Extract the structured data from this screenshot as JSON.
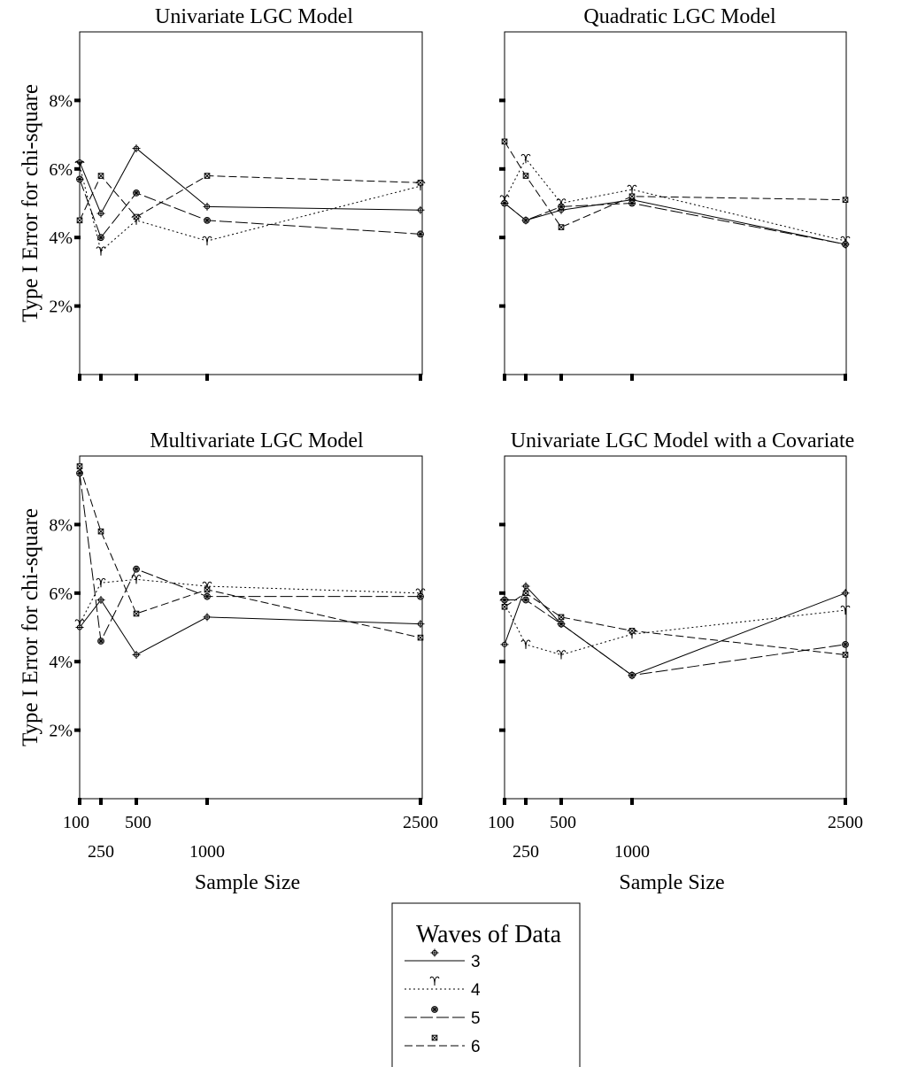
{
  "y_axis_label": "Type I Error for chi-square",
  "x_axis_label": "Sample Size",
  "y_tick_labels": [
    "2%",
    "4%",
    "6%",
    "8%"
  ],
  "x_tick_labels": [
    {
      "label": "100",
      "row": 1
    },
    {
      "label": "250",
      "row": 2
    },
    {
      "label": "500",
      "row": 1
    },
    {
      "label": "1000",
      "row": 2
    },
    {
      "label": "2500",
      "row": 1
    }
  ],
  "legend": {
    "title": "Waves of Data",
    "entries": [
      {
        "label": "3",
        "marker": "circle-plus",
        "dash": "solid"
      },
      {
        "label": "4",
        "marker": "aries",
        "dash": "dotted"
      },
      {
        "label": "5",
        "marker": "snowflake-circle",
        "dash": "long-dash"
      },
      {
        "label": "6",
        "marker": "box-x",
        "dash": "medium-dash"
      }
    ]
  },
  "chart_data": [
    {
      "type": "line",
      "title": "Univariate LGC Model",
      "x": [
        100,
        250,
        500,
        1000,
        2500
      ],
      "ylim": [
        0,
        10
      ],
      "yticks": [
        2,
        4,
        6,
        8
      ],
      "ylabel": "Type I Error for chi-square",
      "xlabel": "",
      "series": [
        {
          "name": "3",
          "values": [
            6.2,
            4.7,
            6.6,
            4.9,
            4.8
          ]
        },
        {
          "name": "4",
          "values": [
            6.1,
            3.6,
            4.5,
            3.9,
            5.5
          ]
        },
        {
          "name": "5",
          "values": [
            5.7,
            4.0,
            5.3,
            4.5,
            4.1
          ]
        },
        {
          "name": "6",
          "values": [
            4.5,
            5.8,
            4.6,
            5.8,
            5.6
          ]
        }
      ]
    },
    {
      "type": "line",
      "title": "Quadratic LGC Model",
      "x": [
        100,
        250,
        500,
        1000,
        2500
      ],
      "ylim": [
        0,
        10
      ],
      "yticks": [
        2,
        4,
        6,
        8
      ],
      "ylabel": "",
      "xlabel": "",
      "series": [
        {
          "name": "3",
          "values": [
            5.0,
            4.5,
            4.8,
            5.1,
            3.8
          ]
        },
        {
          "name": "4",
          "values": [
            5.1,
            6.3,
            5.0,
            5.4,
            3.9
          ]
        },
        {
          "name": "5",
          "values": [
            5.0,
            4.5,
            4.9,
            5.0,
            3.8
          ]
        },
        {
          "name": "6",
          "values": [
            6.8,
            5.8,
            4.3,
            5.2,
            5.1
          ]
        }
      ]
    },
    {
      "type": "line",
      "title": "Multivariate LGC Model",
      "x": [
        100,
        250,
        500,
        1000,
        2500
      ],
      "ylim": [
        0,
        10
      ],
      "yticks": [
        2,
        4,
        6,
        8
      ],
      "ylabel": "Type I Error for chi-square",
      "xlabel": "Sample Size",
      "series": [
        {
          "name": "3",
          "values": [
            5.0,
            5.8,
            4.2,
            5.3,
            5.1
          ]
        },
        {
          "name": "4",
          "values": [
            5.1,
            6.3,
            6.4,
            6.2,
            6.0
          ]
        },
        {
          "name": "5",
          "values": [
            9.5,
            4.6,
            6.7,
            5.9,
            5.9
          ]
        },
        {
          "name": "6",
          "values": [
            9.7,
            7.8,
            5.4,
            6.1,
            4.7
          ]
        }
      ]
    },
    {
      "type": "line",
      "title": "Univariate LGC Model with a Covariate",
      "x": [
        100,
        250,
        500,
        1000,
        2500
      ],
      "ylim": [
        0,
        10
      ],
      "yticks": [
        2,
        4,
        6,
        8
      ],
      "ylabel": "",
      "xlabel": "Sample Size",
      "series": [
        {
          "name": "3",
          "values": [
            4.5,
            6.2,
            5.1,
            3.6,
            6.0
          ]
        },
        {
          "name": "4",
          "values": [
            5.7,
            4.5,
            4.2,
            4.8,
            5.5
          ]
        },
        {
          "name": "5",
          "values": [
            5.8,
            5.8,
            5.1,
            3.6,
            4.5
          ]
        },
        {
          "name": "6",
          "values": [
            5.6,
            6.0,
            5.3,
            4.9,
            4.2
          ]
        }
      ]
    }
  ]
}
